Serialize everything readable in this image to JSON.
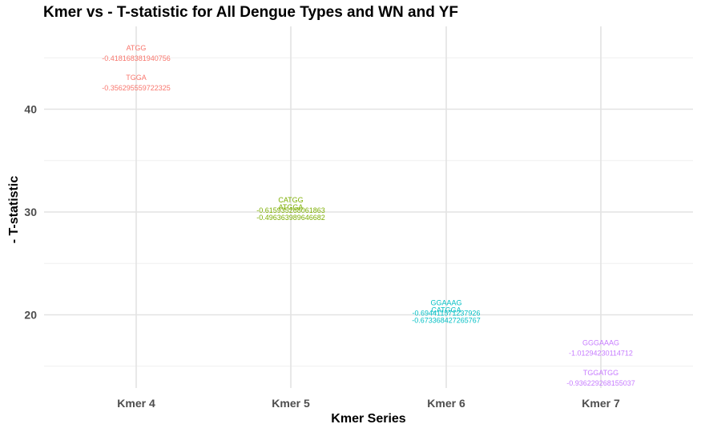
{
  "chart_data": {
    "type": "scatter",
    "title": "Kmer vs - T-statistic for All Dengue Types and WN and YF",
    "xlabel": "Kmer Series",
    "ylabel": "- T-statistic",
    "categories": [
      "Kmer 4",
      "Kmer 5",
      "Kmer 6",
      "Kmer 7"
    ],
    "ylim": [
      13,
      48
    ],
    "yticks": [
      20,
      30,
      40
    ],
    "grid": true,
    "legend": "none",
    "series": [
      {
        "color": "#F8766D",
        "points": [
          {
            "x": "Kmer 4",
            "y": 45.5,
            "kmer": "ATGG",
            "value": "-0.418168381940756"
          },
          {
            "x": "Kmer 4",
            "y": 42.6,
            "kmer": "TGGA",
            "value": "-0.356295559722325"
          }
        ]
      },
      {
        "color": "#7CAE00",
        "points": [
          {
            "x": "Kmer 5",
            "y": 30.7,
            "kmer": "CATGG",
            "value": "-0.615935268061863"
          },
          {
            "x": "Kmer 5",
            "y": 30.0,
            "kmer": "ATGGA",
            "value": "-0.496363989646682"
          }
        ]
      },
      {
        "color": "#00BFC4",
        "points": [
          {
            "x": "Kmer 6",
            "y": 20.7,
            "kmer": "GGAAAG",
            "value": "-0.694411571237926"
          },
          {
            "x": "Kmer 6",
            "y": 20.0,
            "kmer": "CATGGA",
            "value": "-0.673368427265767"
          }
        ]
      },
      {
        "color": "#C77CFF",
        "points": [
          {
            "x": "Kmer 7",
            "y": 16.8,
            "kmer": "GGGAAAG",
            "value": "-1.01294230114712"
          },
          {
            "x": "Kmer 7",
            "y": 13.9,
            "kmer": "TGGATGG",
            "value": "-0.936229268155037"
          }
        ]
      }
    ]
  }
}
